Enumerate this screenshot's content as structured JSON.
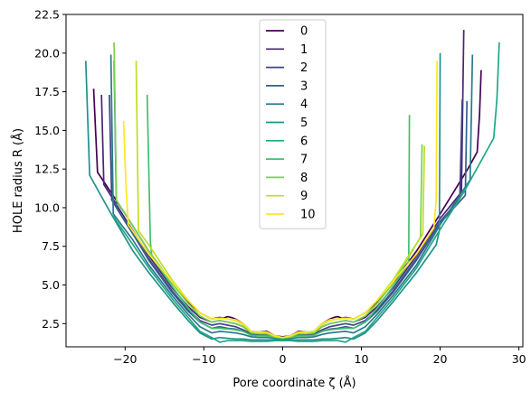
{
  "chart_data": {
    "type": "line",
    "title": "",
    "xlabel": "Pore coordinate ζ (Å)",
    "ylabel": "HOLE radius R (Å)",
    "xlim": [
      -27.5,
      30.5
    ],
    "ylim": [
      1.0,
      22.5
    ],
    "xticks": [
      -20,
      -10,
      0,
      10,
      20,
      30
    ],
    "xtick_labels": [
      "−20",
      "−10",
      "0",
      "10",
      "20",
      "30"
    ],
    "yticks": [
      2.5,
      5.0,
      7.5,
      10.0,
      12.5,
      15.0,
      17.5,
      20.0,
      22.5
    ],
    "ytick_labels": [
      "2.5",
      "5.0",
      "7.5",
      "10.0",
      "12.5",
      "15.0",
      "17.5",
      "20.0",
      "22.5"
    ],
    "grid": false,
    "legend_position": "top-center",
    "colormap": "viridis",
    "series": [
      {
        "name": "0",
        "color": "#440154",
        "x": [
          -24.0,
          -23.5,
          -20,
          -17,
          -14,
          -12,
          -10.5,
          -9,
          -8,
          -7.5,
          -7,
          -6.5,
          -6,
          -5,
          -4,
          -3,
          -2,
          -1,
          0,
          1,
          2,
          3,
          4,
          5,
          6,
          6.5,
          7,
          7.5,
          8,
          9,
          10.5,
          12,
          14,
          17,
          20,
          23.5,
          24.7,
          25.0,
          25.2
        ],
        "y": [
          17.7,
          12.3,
          9.6,
          7.2,
          5.1,
          3.9,
          3.2,
          2.8,
          2.9,
          2.85,
          2.95,
          2.9,
          2.8,
          2.5,
          2.0,
          1.95,
          2.0,
          1.7,
          1.65,
          1.7,
          2.0,
          1.95,
          2.0,
          2.5,
          2.8,
          2.9,
          2.95,
          2.85,
          2.9,
          2.8,
          3.2,
          3.9,
          5.1,
          7.2,
          9.6,
          12.5,
          13.6,
          16.0,
          18.9
        ]
      },
      {
        "name": "1",
        "color": "#482475",
        "x": [
          -23.0,
          -22.7,
          -20,
          -17,
          -14,
          -12,
          -10.5,
          -9,
          -8,
          -7,
          -6,
          -5,
          -4,
          -3,
          -2,
          -1,
          0,
          1,
          2,
          3,
          4,
          5,
          6,
          7,
          8,
          9,
          10.5,
          12,
          14,
          17,
          20,
          22.7,
          23.0
        ],
        "y": [
          17.3,
          11.5,
          9.3,
          6.9,
          4.8,
          3.6,
          2.9,
          2.6,
          2.7,
          2.6,
          2.5,
          2.3,
          1.9,
          1.85,
          1.85,
          1.65,
          1.6,
          1.65,
          1.85,
          1.85,
          1.9,
          2.3,
          2.5,
          2.6,
          2.7,
          2.6,
          2.9,
          3.6,
          4.8,
          6.9,
          9.3,
          11.0,
          21.5
        ]
      },
      {
        "name": "2",
        "color": "#414487",
        "x": [
          -22.0,
          -21.7,
          -20,
          -17,
          -14,
          -12,
          -10.5,
          -9,
          -8,
          -7,
          -6,
          -5,
          -4,
          -3,
          -2,
          -1,
          0,
          1,
          2,
          3,
          4,
          5,
          6,
          7,
          8,
          9,
          10.5,
          12,
          14,
          17,
          20,
          22.5,
          22.8
        ],
        "y": [
          17.3,
          10.5,
          9.1,
          6.7,
          4.6,
          3.4,
          2.7,
          2.4,
          2.5,
          2.4,
          2.3,
          2.1,
          1.85,
          1.8,
          1.8,
          1.65,
          1.6,
          1.65,
          1.8,
          1.8,
          1.85,
          2.1,
          2.3,
          2.4,
          2.5,
          2.4,
          2.7,
          3.4,
          4.6,
          6.7,
          9.1,
          10.6,
          17.0
        ]
      },
      {
        "name": "3",
        "color": "#355f8d",
        "x": [
          -21.4,
          -21.1,
          -19,
          -17,
          -14,
          -12,
          -10.5,
          -9,
          -8,
          -7,
          -6,
          -5,
          -4,
          -3,
          -2,
          -1,
          0,
          1,
          2,
          3,
          4,
          5,
          6,
          7,
          8,
          9,
          10.5,
          12,
          14,
          17,
          20,
          23.2,
          23.4
        ],
        "y": [
          19.5,
          10.0,
          8.3,
          6.6,
          4.5,
          3.3,
          2.6,
          2.2,
          2.3,
          2.2,
          2.15,
          2.0,
          1.8,
          1.75,
          1.75,
          1.6,
          1.55,
          1.6,
          1.75,
          1.75,
          1.8,
          2.0,
          2.15,
          2.2,
          2.3,
          2.2,
          2.6,
          3.3,
          4.5,
          6.6,
          9.0,
          10.8,
          16.9
        ]
      },
      {
        "name": "4",
        "color": "#2a788e",
        "x": [
          -21.8,
          -21.5,
          -19,
          -17,
          -14,
          -12,
          -10.5,
          -9,
          -8,
          -7,
          -6,
          -5,
          -4,
          -3,
          -2,
          -1,
          0,
          1,
          2,
          3,
          4,
          5,
          6,
          7,
          8,
          9,
          10.5,
          12,
          14,
          17,
          20,
          23.8,
          24.1
        ],
        "y": [
          19.9,
          9.6,
          7.9,
          6.3,
          4.3,
          3.1,
          2.3,
          1.9,
          2.0,
          1.95,
          1.9,
          1.8,
          1.65,
          1.6,
          1.6,
          1.55,
          1.5,
          1.55,
          1.6,
          1.6,
          1.65,
          1.8,
          1.9,
          1.95,
          2.0,
          1.9,
          2.3,
          3.1,
          4.3,
          6.3,
          8.9,
          11.8,
          19.9
        ]
      },
      {
        "name": "5",
        "color": "#21918c",
        "x": [
          -25.0,
          -24.5,
          -22,
          -19,
          -17,
          -14,
          -12,
          -10.5,
          -9,
          -8,
          -7,
          -6,
          -5,
          -4,
          -3,
          -2,
          -1,
          0,
          1,
          2,
          3,
          4,
          5,
          6,
          7,
          8,
          9,
          10.5,
          12,
          14,
          17,
          19.5,
          19.9,
          20.0
        ],
        "y": [
          19.5,
          12.1,
          9.8,
          7.2,
          5.8,
          3.9,
          2.7,
          1.9,
          1.5,
          1.6,
          1.55,
          1.5,
          1.5,
          1.45,
          1.45,
          1.45,
          1.45,
          1.45,
          1.45,
          1.45,
          1.45,
          1.45,
          1.5,
          1.5,
          1.55,
          1.6,
          1.5,
          1.9,
          2.7,
          3.9,
          5.8,
          7.6,
          8.5,
          20.0
        ]
      },
      {
        "name": "6",
        "color": "#22a884",
        "x": [
          -21.5,
          -21.2,
          -19,
          -17,
          -14,
          -12,
          -10.5,
          -9,
          -8,
          -7,
          -6,
          -5,
          -4,
          -3,
          -2,
          -1,
          0,
          1,
          2,
          3,
          4,
          5,
          6,
          7,
          8,
          9,
          10.5,
          12,
          14,
          17,
          20,
          23,
          26.8,
          27.2,
          27.5
        ],
        "y": [
          9.5,
          9.2,
          7.6,
          6.1,
          4.1,
          2.9,
          2.0,
          1.6,
          1.3,
          1.4,
          1.4,
          1.4,
          1.35,
          1.35,
          1.35,
          1.4,
          1.4,
          1.4,
          1.35,
          1.35,
          1.35,
          1.4,
          1.4,
          1.4,
          1.3,
          1.6,
          2.0,
          2.9,
          4.1,
          6.1,
          8.6,
          11.0,
          14.5,
          17.0,
          20.7
        ]
      },
      {
        "name": "7",
        "color": "#43bf71",
        "x": [
          -17.2,
          -16.8,
          -16.6,
          -14,
          -12,
          -10.5,
          -9,
          -8,
          -7,
          -6,
          -5,
          -4,
          -3,
          -2,
          -1,
          0,
          1,
          2,
          3,
          4,
          5,
          6,
          7,
          8,
          9,
          10.5,
          12,
          14,
          15.5,
          16.0,
          16.1
        ],
        "y": [
          17.3,
          7.8,
          6.8,
          4.9,
          3.5,
          2.6,
          2.2,
          2.2,
          2.15,
          2.1,
          2.0,
          1.75,
          1.7,
          1.7,
          1.6,
          1.55,
          1.6,
          1.7,
          1.7,
          1.75,
          2.0,
          2.1,
          2.15,
          2.2,
          2.2,
          2.6,
          3.5,
          4.9,
          6.0,
          6.5,
          16.0
        ]
      },
      {
        "name": "8",
        "color": "#7ad151",
        "x": [
          -21.4,
          -21.1,
          -19,
          -17,
          -14,
          -12,
          -10.5,
          -9,
          -8,
          -7,
          -6,
          -5,
          -4,
          -3,
          -2,
          -1,
          0,
          1,
          2,
          3,
          4,
          5,
          6,
          7,
          8,
          9,
          10.5,
          12,
          14,
          16,
          17.5,
          17.7
        ],
        "y": [
          20.7,
          10.5,
          8.8,
          7.2,
          5.1,
          3.8,
          3.0,
          2.6,
          2.7,
          2.6,
          2.5,
          2.3,
          1.9,
          1.85,
          1.85,
          1.65,
          1.6,
          1.65,
          1.85,
          1.85,
          1.9,
          2.3,
          2.5,
          2.6,
          2.7,
          2.6,
          3.0,
          3.8,
          5.1,
          6.8,
          8.1,
          14.1
        ]
      },
      {
        "name": "9",
        "color": "#bddf26",
        "x": [
          -18.6,
          -18.3,
          -17,
          -14,
          -12,
          -10.5,
          -9,
          -8,
          -7,
          -6,
          -5,
          -4,
          -3,
          -2,
          -1,
          0,
          1,
          2,
          3,
          4,
          5,
          6,
          7,
          8,
          9,
          10.5,
          12,
          14,
          16,
          17.8,
          18.0
        ],
        "y": [
          19.5,
          8.5,
          7.6,
          5.3,
          4.0,
          3.2,
          2.8,
          2.85,
          2.8,
          2.7,
          2.45,
          2.0,
          1.9,
          1.9,
          1.7,
          1.6,
          1.7,
          1.9,
          1.9,
          2.0,
          2.45,
          2.7,
          2.8,
          2.85,
          2.8,
          3.2,
          4.0,
          5.3,
          6.9,
          8.3,
          14.0
        ]
      },
      {
        "name": "10",
        "color": "#fde725",
        "x": [
          -20.2,
          -19.9,
          -19.6,
          -17,
          -14,
          -12,
          -10.5,
          -9,
          -8,
          -7,
          -6,
          -5,
          -4,
          -3,
          -2,
          -1,
          0,
          1,
          2,
          3,
          4,
          5,
          6,
          7,
          8,
          9,
          10.5,
          12,
          14,
          17,
          19.2,
          19.5,
          19.6
        ],
        "y": [
          15.6,
          11.5,
          8.9,
          7.0,
          5.2,
          4.0,
          3.2,
          2.8,
          2.85,
          2.8,
          2.75,
          2.5,
          2.0,
          1.95,
          1.95,
          1.7,
          1.6,
          1.7,
          1.95,
          1.95,
          2.0,
          2.5,
          2.75,
          2.8,
          2.85,
          2.8,
          3.2,
          4.0,
          5.2,
          7.0,
          8.7,
          10.5,
          19.5
        ]
      }
    ]
  }
}
